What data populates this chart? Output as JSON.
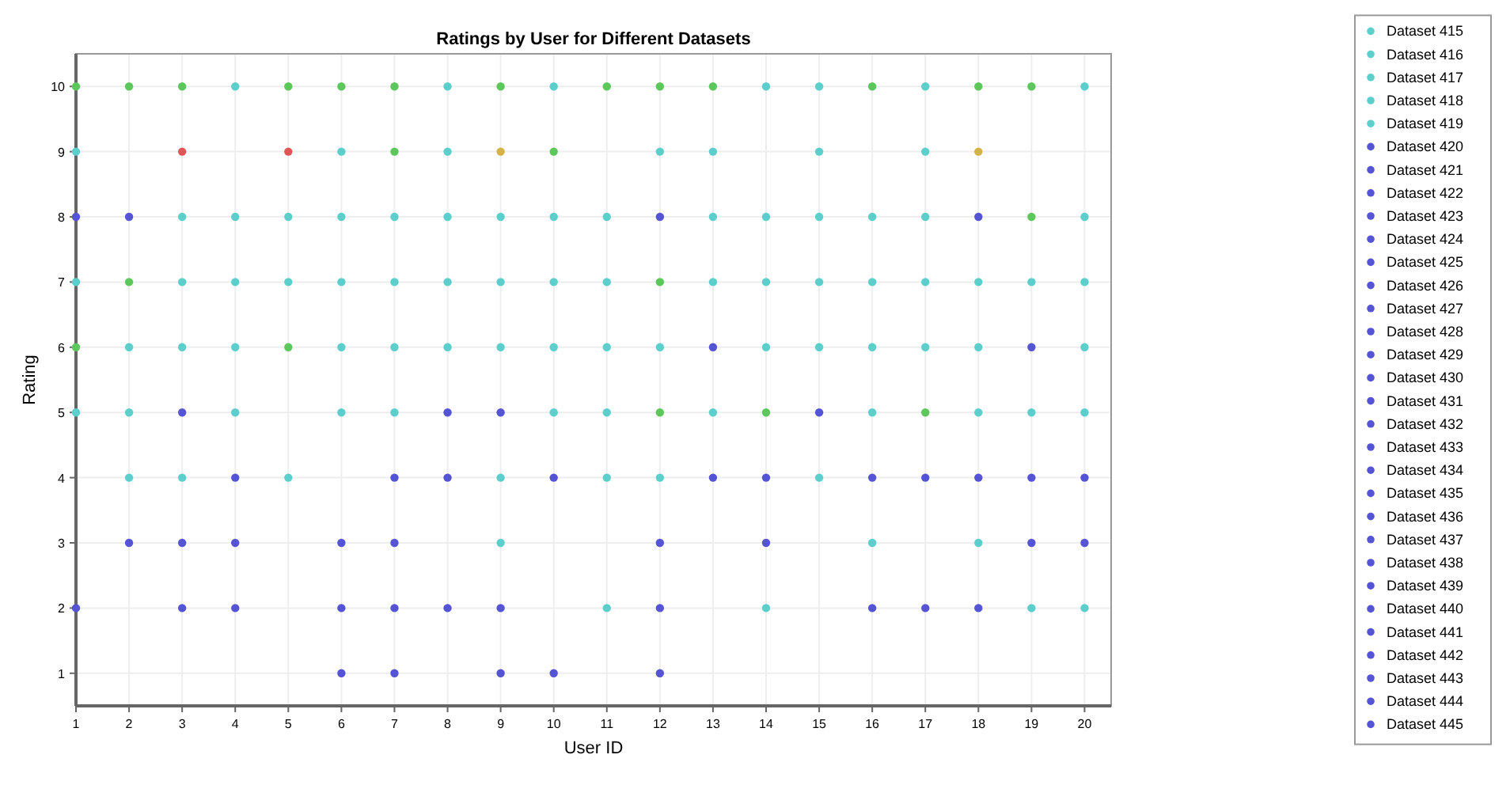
{
  "chart_data": {
    "type": "scatter",
    "title": "Ratings by User for Different Datasets",
    "xlabel": "User ID",
    "ylabel": "Rating",
    "xlim": [
      1,
      20.5
    ],
    "ylim": [
      0.5,
      10.5
    ],
    "xticks": [
      1,
      2,
      3,
      4,
      5,
      6,
      7,
      8,
      9,
      10,
      11,
      12,
      13,
      14,
      15,
      16,
      17,
      18,
      19,
      20
    ],
    "yticks": [
      1,
      2,
      3,
      4,
      5,
      6,
      7,
      8,
      9,
      10
    ],
    "grid": true,
    "marker": "circle",
    "legend": "right",
    "series": [
      {
        "color": "#5ccfcc",
        "x": [
          4,
          8,
          10,
          14,
          15,
          17,
          20,
          1,
          6,
          8,
          12,
          13,
          15,
          17,
          3,
          4,
          5,
          6,
          7,
          8,
          9,
          10,
          11,
          13,
          14,
          15,
          16,
          17,
          20,
          1,
          3,
          4,
          5,
          6,
          7,
          8,
          9,
          10,
          11,
          13,
          14,
          15,
          16,
          17,
          18,
          19,
          20,
          2,
          3,
          4,
          6,
          7,
          8,
          9,
          10,
          11,
          12,
          14,
          15,
          16,
          17,
          18,
          20,
          1,
          2,
          4,
          6,
          7,
          10,
          11,
          13,
          16,
          18,
          19,
          20,
          2,
          3,
          5,
          9,
          11,
          12,
          15,
          9,
          16,
          18,
          11,
          14,
          19,
          20
        ],
        "values": [
          10,
          10,
          10,
          10,
          10,
          10,
          10,
          9,
          9,
          9,
          9,
          9,
          9,
          9,
          8,
          8,
          8,
          8,
          8,
          8,
          8,
          8,
          8,
          8,
          8,
          8,
          8,
          8,
          8,
          7,
          7,
          7,
          7,
          7,
          7,
          7,
          7,
          7,
          7,
          7,
          7,
          7,
          7,
          7,
          7,
          7,
          7,
          6,
          6,
          6,
          6,
          6,
          6,
          6,
          6,
          6,
          6,
          6,
          6,
          6,
          6,
          6,
          6,
          5,
          5,
          5,
          5,
          5,
          5,
          5,
          5,
          5,
          5,
          5,
          5,
          4,
          4,
          4,
          4,
          4,
          4,
          4,
          3,
          3,
          3,
          2,
          2,
          2,
          2
        ]
      },
      {
        "color": "#5cc85c",
        "x": [
          1,
          2,
          3,
          5,
          6,
          7,
          9,
          11,
          12,
          13,
          16,
          18,
          19,
          7,
          10,
          19,
          2,
          12,
          1,
          5,
          12,
          14,
          17
        ],
        "values": [
          10,
          10,
          10,
          10,
          10,
          10,
          10,
          10,
          10,
          10,
          10,
          10,
          10,
          9,
          9,
          8,
          7,
          7,
          6,
          6,
          5,
          5,
          5
        ]
      },
      {
        "color": "#5454d4",
        "x": [
          1,
          2,
          12,
          18,
          13,
          19,
          3,
          8,
          9,
          15,
          4,
          7,
          8,
          10,
          13,
          14,
          16,
          17,
          18,
          19,
          20,
          2,
          3,
          4,
          6,
          7,
          12,
          14,
          19,
          20,
          1,
          3,
          4,
          6,
          7,
          8,
          9,
          12,
          16,
          17,
          18,
          6,
          7,
          9,
          10,
          12
        ],
        "values": [
          8,
          8,
          8,
          8,
          6,
          6,
          5,
          5,
          5,
          5,
          4,
          4,
          4,
          4,
          4,
          4,
          4,
          4,
          4,
          4,
          4,
          3,
          3,
          3,
          3,
          3,
          3,
          3,
          3,
          3,
          2,
          2,
          2,
          2,
          2,
          2,
          2,
          2,
          2,
          2,
          2,
          1,
          1,
          1,
          1,
          1
        ]
      },
      {
        "color": "#e05555",
        "x": [
          3,
          5
        ],
        "values": [
          9,
          9
        ]
      },
      {
        "color": "#d4b24a",
        "x": [
          9,
          18
        ],
        "values": [
          9,
          9
        ]
      },
      {
        "name": "Dataset 415",
        "color": "#5ccfcc"
      },
      {
        "name": "Dataset 416",
        "color": "#5ccfcc"
      },
      {
        "name": "Dataset 417",
        "color": "#5ccfcc"
      },
      {
        "name": "Dataset 418",
        "color": "#5ccfcc"
      },
      {
        "name": "Dataset 419",
        "color": "#5ccfcc"
      },
      {
        "name": "Dataset 420",
        "color": "#5454d4"
      },
      {
        "name": "Dataset 421",
        "color": "#5454d4"
      },
      {
        "name": "Dataset 422",
        "color": "#5454d4"
      },
      {
        "name": "Dataset 423",
        "color": "#5454d4"
      },
      {
        "name": "Dataset 424",
        "color": "#5454d4"
      },
      {
        "name": "Dataset 425",
        "color": "#5454d4"
      },
      {
        "name": "Dataset 426",
        "color": "#5454d4"
      },
      {
        "name": "Dataset 427",
        "color": "#5454d4"
      },
      {
        "name": "Dataset 428",
        "color": "#5454d4"
      },
      {
        "name": "Dataset 429",
        "color": "#5454d4"
      },
      {
        "name": "Dataset 430",
        "color": "#5454d4"
      },
      {
        "name": "Dataset 431",
        "color": "#5454d4"
      },
      {
        "name": "Dataset 432",
        "color": "#5454d4"
      },
      {
        "name": "Dataset 433",
        "color": "#5454d4"
      },
      {
        "name": "Dataset 434",
        "color": "#5454d4"
      },
      {
        "name": "Dataset 435",
        "color": "#5454d4"
      },
      {
        "name": "Dataset 436",
        "color": "#5454d4"
      },
      {
        "name": "Dataset 437",
        "color": "#5454d4"
      },
      {
        "name": "Dataset 438",
        "color": "#5454d4"
      },
      {
        "name": "Dataset 439",
        "color": "#5454d4"
      },
      {
        "name": "Dataset 440",
        "color": "#5454d4"
      },
      {
        "name": "Dataset 441",
        "color": "#5454d4"
      },
      {
        "name": "Dataset 442",
        "color": "#5454d4"
      },
      {
        "name": "Dataset 443",
        "color": "#5454d4"
      },
      {
        "name": "Dataset 444",
        "color": "#5454d4"
      },
      {
        "name": "Dataset 445",
        "color": "#5454d4"
      }
    ]
  }
}
